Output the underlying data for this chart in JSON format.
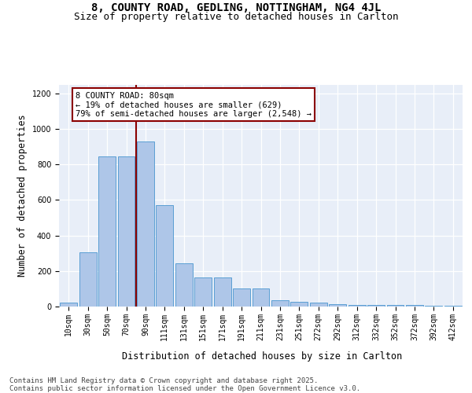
{
  "title_line1": "8, COUNTY ROAD, GEDLING, NOTTINGHAM, NG4 4JL",
  "title_line2": "Size of property relative to detached houses in Carlton",
  "xlabel": "Distribution of detached houses by size in Carlton",
  "ylabel": "Number of detached properties",
  "categories": [
    "10sqm",
    "30sqm",
    "50sqm",
    "70sqm",
    "90sqm",
    "111sqm",
    "131sqm",
    "151sqm",
    "171sqm",
    "191sqm",
    "211sqm",
    "231sqm",
    "251sqm",
    "272sqm",
    "292sqm",
    "312sqm",
    "332sqm",
    "352sqm",
    "372sqm",
    "392sqm",
    "412sqm"
  ],
  "values": [
    20,
    305,
    845,
    845,
    930,
    570,
    245,
    165,
    165,
    100,
    100,
    35,
    25,
    20,
    15,
    10,
    10,
    10,
    8,
    5,
    5
  ],
  "bar_color": "#aec6e8",
  "bar_edge_color": "#5a9fd4",
  "vline_x": 3.5,
  "vline_color": "#8b0000",
  "annotation_text": "8 COUNTY ROAD: 80sqm\n← 19% of detached houses are smaller (629)\n79% of semi-detached houses are larger (2,548) →",
  "annotation_box_edgecolor": "#8b0000",
  "ylim": [
    0,
    1250
  ],
  "yticks": [
    0,
    200,
    400,
    600,
    800,
    1000,
    1200
  ],
  "plot_bg_color": "#e8eef8",
  "title_fontsize": 10,
  "subtitle_fontsize": 9,
  "axis_label_fontsize": 8.5,
  "tick_fontsize": 7,
  "ann_fontsize": 7.5,
  "footer_fontsize": 6.5,
  "footer_text": "Contains HM Land Registry data © Crown copyright and database right 2025.\nContains public sector information licensed under the Open Government Licence v3.0."
}
